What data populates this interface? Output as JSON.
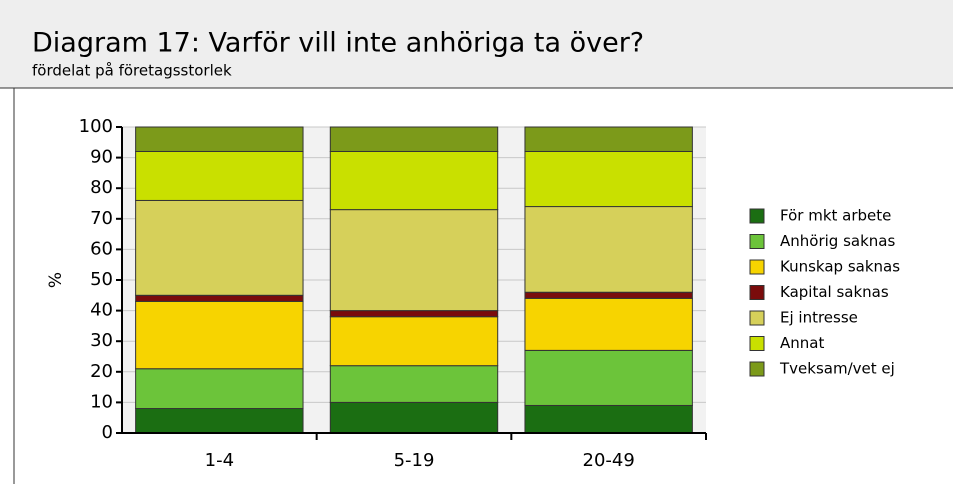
{
  "chart_data": {
    "type": "stacked_bar",
    "title": "Diagram 17: Varför vill inte anhöriga ta över?",
    "subtitle": "fördelat på företagsstorlek",
    "ylabel": "%",
    "categories": [
      "1-4",
      "5-19",
      "20-49"
    ],
    "series": [
      {
        "name": "För mkt arbete",
        "color": "#1b6e12",
        "values": [
          8,
          10,
          9
        ]
      },
      {
        "name": "Anhörig saknas",
        "color": "#6cc43a",
        "values": [
          13,
          12,
          18
        ]
      },
      {
        "name": "Kunskap saknas",
        "color": "#f7d400",
        "values": [
          22,
          16,
          17
        ]
      },
      {
        "name": "Kapital saknas",
        "color": "#7a0c0c",
        "values": [
          2,
          2,
          2
        ]
      },
      {
        "name": "Ej intresse",
        "color": "#d6d05a",
        "values": [
          31,
          33,
          28
        ]
      },
      {
        "name": "Annat",
        "color": "#c9e000",
        "values": [
          16,
          19,
          18
        ]
      },
      {
        "name": "Tveksam/vet ej",
        "color": "#7c9a1a",
        "values": [
          8,
          8,
          8
        ]
      }
    ],
    "ylim": [
      0,
      100
    ],
    "yticks": [
      0,
      10,
      20,
      30,
      40,
      50,
      60,
      70,
      80,
      90,
      100
    ],
    "grid": true,
    "legend": "right"
  }
}
